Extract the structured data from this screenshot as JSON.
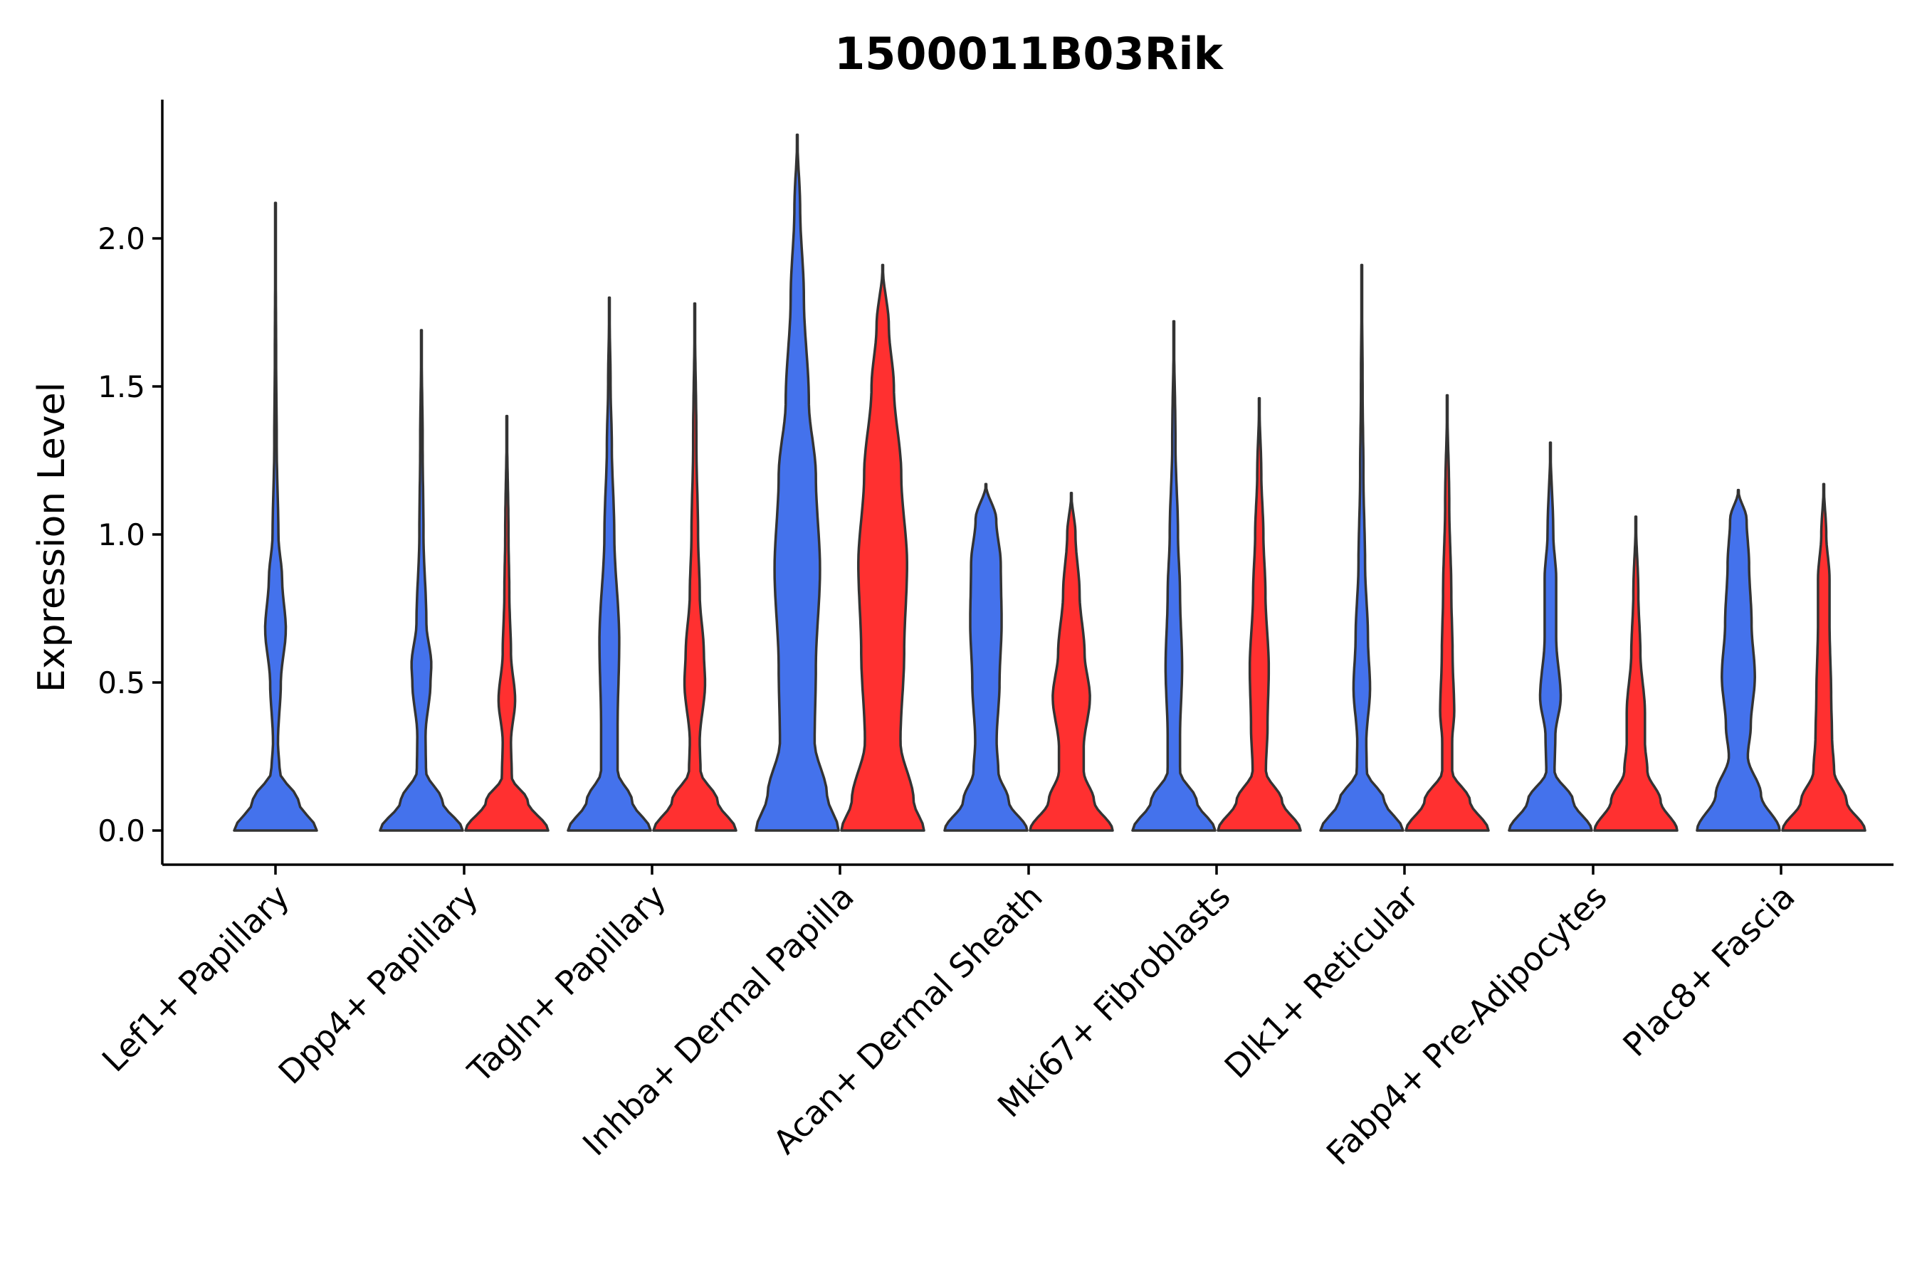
{
  "chart_data": {
    "type": "violin",
    "title": "1500011B03Rik",
    "xlabel": "",
    "ylabel": "Expression Level",
    "ylim": [
      -0.12,
      2.45
    ],
    "yticks": [
      0.0,
      0.5,
      1.0,
      1.5,
      2.0
    ],
    "ytick_labels": [
      "0.0",
      "0.5",
      "1.0",
      "1.5",
      "2.0"
    ],
    "grid": false,
    "legend": "none",
    "categories": [
      "Lef1+ Papillary",
      "Dpp4+ Papillary",
      "Tagln+ Papillary",
      "Inhba+ Dermal Papilla",
      "Acan+ Dermal Sheath",
      "Mki67+ Fibroblasts",
      "Dlk1+ Reticular",
      "Fabp4+ Pre-Adipocytes",
      "Plac8+ Fascia"
    ],
    "series_colors": {
      "blue": "#4472ec",
      "red": "#ff3030"
    },
    "violins": [
      {
        "category": "Lef1+ Papillary",
        "group": "blue",
        "max": 2.12,
        "profile": [
          [
            0,
            1.0
          ],
          [
            0.1,
            0.55
          ],
          [
            0.2,
            0.1
          ],
          [
            0.3,
            0.06
          ],
          [
            0.5,
            0.13
          ],
          [
            0.68,
            0.25
          ],
          [
            0.85,
            0.16
          ],
          [
            1.0,
            0.07
          ],
          [
            1.3,
            0.03
          ],
          [
            1.6,
            0.015
          ],
          [
            2.12,
            0.0
          ]
        ]
      },
      {
        "category": "Dpp4+ Papillary",
        "group": "blue",
        "max": 1.69,
        "profile": [
          [
            0,
            1.0
          ],
          [
            0.1,
            0.5
          ],
          [
            0.2,
            0.11
          ],
          [
            0.32,
            0.1
          ],
          [
            0.5,
            0.22
          ],
          [
            0.56,
            0.24
          ],
          [
            0.7,
            0.12
          ],
          [
            1.0,
            0.05
          ],
          [
            1.3,
            0.03
          ],
          [
            1.69,
            0.0
          ]
        ]
      },
      {
        "category": "Dpp4+ Papillary",
        "group": "red",
        "max": 1.4,
        "profile": [
          [
            0,
            1.0
          ],
          [
            0.1,
            0.5
          ],
          [
            0.18,
            0.12
          ],
          [
            0.3,
            0.1
          ],
          [
            0.44,
            0.2
          ],
          [
            0.6,
            0.1
          ],
          [
            0.8,
            0.06
          ],
          [
            1.0,
            0.04
          ],
          [
            1.4,
            0.0
          ]
        ]
      },
      {
        "category": "Tagln+ Papillary",
        "group": "blue",
        "max": 1.8,
        "profile": [
          [
            0,
            1.0
          ],
          [
            0.1,
            0.55
          ],
          [
            0.2,
            0.2
          ],
          [
            0.35,
            0.2
          ],
          [
            0.64,
            0.24
          ],
          [
            1.0,
            0.12
          ],
          [
            1.3,
            0.06
          ],
          [
            1.5,
            0.03
          ],
          [
            1.8,
            0.0
          ]
        ]
      },
      {
        "category": "Tagln+ Papillary",
        "group": "red",
        "max": 1.78,
        "profile": [
          [
            0,
            1.0
          ],
          [
            0.1,
            0.55
          ],
          [
            0.2,
            0.14
          ],
          [
            0.3,
            0.12
          ],
          [
            0.5,
            0.25
          ],
          [
            0.6,
            0.22
          ],
          [
            0.8,
            0.12
          ],
          [
            1.0,
            0.08
          ],
          [
            1.3,
            0.04
          ],
          [
            1.78,
            0.0
          ]
        ]
      },
      {
        "category": "Inhba+ Dermal Papilla",
        "group": "blue",
        "max": 2.35,
        "profile": [
          [
            0,
            1.0
          ],
          [
            0.12,
            0.72
          ],
          [
            0.3,
            0.42
          ],
          [
            0.55,
            0.45
          ],
          [
            0.88,
            0.55
          ],
          [
            1.2,
            0.45
          ],
          [
            1.45,
            0.28
          ],
          [
            1.8,
            0.16
          ],
          [
            2.1,
            0.07
          ],
          [
            2.35,
            0.0
          ]
        ]
      },
      {
        "category": "Inhba+ Dermal Papilla",
        "group": "red",
        "max": 1.91,
        "profile": [
          [
            0,
            1.0
          ],
          [
            0.1,
            0.75
          ],
          [
            0.3,
            0.43
          ],
          [
            0.6,
            0.52
          ],
          [
            0.9,
            0.59
          ],
          [
            1.2,
            0.45
          ],
          [
            1.5,
            0.27
          ],
          [
            1.7,
            0.15
          ],
          [
            1.91,
            0.0
          ]
        ]
      },
      {
        "category": "Acan+ Dermal Sheath",
        "group": "blue",
        "max": 1.17,
        "profile": [
          [
            0,
            1.0
          ],
          [
            0.1,
            0.55
          ],
          [
            0.2,
            0.3
          ],
          [
            0.3,
            0.26
          ],
          [
            0.5,
            0.33
          ],
          [
            0.7,
            0.38
          ],
          [
            0.9,
            0.36
          ],
          [
            1.05,
            0.25
          ],
          [
            1.17,
            0.0
          ]
        ]
      },
      {
        "category": "Acan+ Dermal Sheath",
        "group": "red",
        "max": 1.14,
        "profile": [
          [
            0,
            1.0
          ],
          [
            0.1,
            0.55
          ],
          [
            0.2,
            0.3
          ],
          [
            0.28,
            0.3
          ],
          [
            0.45,
            0.45
          ],
          [
            0.6,
            0.32
          ],
          [
            0.8,
            0.2
          ],
          [
            1.0,
            0.1
          ],
          [
            1.14,
            0.0
          ]
        ]
      },
      {
        "category": "Mki67+ Fibroblasts",
        "group": "blue",
        "max": 1.72,
        "profile": [
          [
            0,
            1.0
          ],
          [
            0.1,
            0.55
          ],
          [
            0.2,
            0.15
          ],
          [
            0.32,
            0.15
          ],
          [
            0.55,
            0.2
          ],
          [
            0.8,
            0.15
          ],
          [
            1.0,
            0.1
          ],
          [
            1.3,
            0.04
          ],
          [
            1.72,
            0.0
          ]
        ]
      },
      {
        "category": "Mki67+ Fibroblasts",
        "group": "red",
        "max": 1.46,
        "profile": [
          [
            0,
            1.0
          ],
          [
            0.1,
            0.55
          ],
          [
            0.2,
            0.16
          ],
          [
            0.35,
            0.2
          ],
          [
            0.55,
            0.23
          ],
          [
            0.8,
            0.15
          ],
          [
            1.0,
            0.1
          ],
          [
            1.2,
            0.05
          ],
          [
            1.46,
            0.0
          ]
        ]
      },
      {
        "category": "Dlk1+ Reticular",
        "group": "blue",
        "max": 1.91,
        "profile": [
          [
            0,
            1.0
          ],
          [
            0.1,
            0.55
          ],
          [
            0.2,
            0.12
          ],
          [
            0.3,
            0.11
          ],
          [
            0.48,
            0.2
          ],
          [
            0.65,
            0.15
          ],
          [
            0.9,
            0.08
          ],
          [
            1.2,
            0.04
          ],
          [
            1.5,
            0.02
          ],
          [
            1.91,
            0.0
          ]
        ]
      },
      {
        "category": "Dlk1+ Reticular",
        "group": "red",
        "max": 1.47,
        "profile": [
          [
            0,
            1.0
          ],
          [
            0.1,
            0.55
          ],
          [
            0.2,
            0.12
          ],
          [
            0.3,
            0.12
          ],
          [
            0.4,
            0.17
          ],
          [
            0.6,
            0.13
          ],
          [
            0.8,
            0.1
          ],
          [
            1.1,
            0.05
          ],
          [
            1.47,
            0.0
          ]
        ]
      },
      {
        "category": "Fabp4+ Pre-Adipocytes",
        "group": "blue",
        "max": 1.31,
        "profile": [
          [
            0,
            1.0
          ],
          [
            0.1,
            0.55
          ],
          [
            0.2,
            0.1
          ],
          [
            0.32,
            0.12
          ],
          [
            0.45,
            0.25
          ],
          [
            0.65,
            0.14
          ],
          [
            0.85,
            0.14
          ],
          [
            1.0,
            0.07
          ],
          [
            1.31,
            0.0
          ]
        ]
      },
      {
        "category": "Fabp4+ Pre-Adipocytes",
        "group": "red",
        "max": 1.06,
        "profile": [
          [
            0,
            1.0
          ],
          [
            0.1,
            0.6
          ],
          [
            0.2,
            0.28
          ],
          [
            0.3,
            0.22
          ],
          [
            0.4,
            0.22
          ],
          [
            0.6,
            0.11
          ],
          [
            0.8,
            0.06
          ],
          [
            1.06,
            0.0
          ]
        ]
      },
      {
        "category": "Plac8+ Fascia",
        "group": "blue",
        "max": 1.15,
        "profile": [
          [
            0,
            1.0
          ],
          [
            0.12,
            0.55
          ],
          [
            0.25,
            0.23
          ],
          [
            0.35,
            0.3
          ],
          [
            0.52,
            0.4
          ],
          [
            0.7,
            0.32
          ],
          [
            0.9,
            0.26
          ],
          [
            1.05,
            0.2
          ],
          [
            1.15,
            0.0
          ]
        ]
      },
      {
        "category": "Plac8+ Fascia",
        "group": "red",
        "max": 1.17,
        "profile": [
          [
            0,
            1.0
          ],
          [
            0.1,
            0.55
          ],
          [
            0.2,
            0.25
          ],
          [
            0.32,
            0.2
          ],
          [
            0.45,
            0.18
          ],
          [
            0.7,
            0.14
          ],
          [
            0.85,
            0.14
          ],
          [
            1.0,
            0.06
          ],
          [
            1.17,
            0.0
          ]
        ]
      }
    ]
  }
}
